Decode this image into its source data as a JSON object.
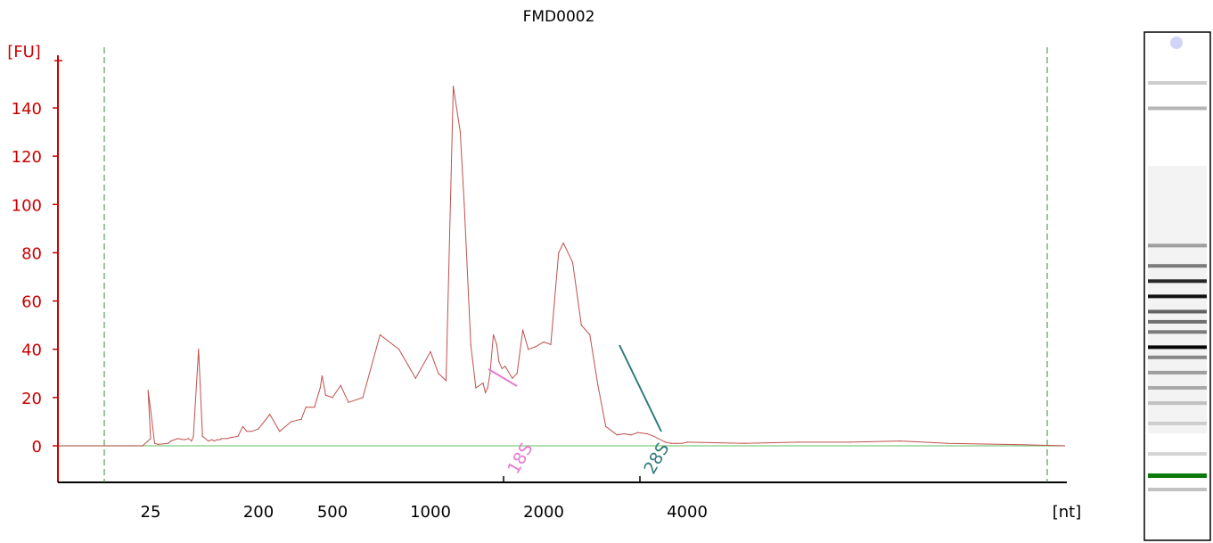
{
  "chart_data": {
    "type": "line",
    "title": "FMD0002",
    "ylabel": "[FU]",
    "xlabel": "[nt]",
    "ylim": [
      -15,
      165
    ],
    "yticks": [
      0,
      20,
      40,
      60,
      80,
      100,
      120,
      140
    ],
    "xtick_labels": [
      "25",
      "200",
      "500",
      "1000",
      "2000",
      "4000"
    ],
    "grid": false,
    "series": [
      {
        "x": [
          22,
          25,
          24,
          25,
          27,
          29,
          35,
          37,
          42,
          48,
          52,
          55,
          57,
          63,
          68,
          76,
          82,
          85,
          90,
          95,
          98,
          110,
          118,
          121,
          135,
          148,
          160,
          175,
          200,
          230,
          260,
          300,
          340,
          360,
          380,
          400,
          430,
          440,
          460,
          500,
          530,
          560,
          620,
          700,
          800,
          900,
          1000,
          1050,
          1100,
          1150,
          1200,
          1230,
          1280,
          1320,
          1380,
          1400,
          1420,
          1440,
          1470,
          1500,
          1520,
          1550,
          1580,
          1650,
          1700,
          1760,
          1820,
          1900,
          2000,
          2070,
          2150,
          2200,
          2300,
          2400,
          2500,
          2600,
          2700,
          2850,
          2950,
          3050,
          3150,
          3300,
          3400,
          3600,
          3700,
          3800,
          3900,
          4000,
          4200,
          4400,
          4600,
          4800,
          5000,
          5300
        ],
        "y": [
          0,
          3,
          23,
          15,
          1,
          0.6,
          1,
          2,
          3,
          2.5,
          3,
          2,
          4,
          40,
          4,
          2,
          2.5,
          2,
          2.5,
          2.5,
          3,
          3,
          3.5,
          3.5,
          4,
          8,
          6,
          6,
          7,
          13,
          6,
          10,
          11,
          16,
          16,
          16,
          24,
          29,
          21,
          20,
          25,
          18,
          20,
          46,
          40,
          28,
          39,
          30,
          27,
          149,
          130,
          100,
          42,
          24,
          26,
          22,
          24,
          30,
          46,
          42,
          35,
          32,
          33,
          28,
          30,
          48,
          40,
          41,
          43,
          42,
          80,
          84,
          76,
          50,
          46,
          25,
          8,
          4.5,
          5,
          4.5,
          5.5,
          5,
          4,
          1.5,
          1,
          1,
          1,
          1.5,
          1,
          1.5,
          1.5,
          2,
          1,
          0.5
        ]
      }
    ],
    "markers": [
      {
        "label": "18S",
        "color": "#e87ad0"
      },
      {
        "label": "28S",
        "color": "#2f7a7a"
      }
    ],
    "gel_image": {
      "bands": [
        {
          "position": 0.1,
          "intensity": 0.15
        },
        {
          "position": 0.15,
          "intensity": 0.25
        },
        {
          "position": 0.42,
          "intensity": 0.35
        },
        {
          "position": 0.46,
          "intensity": 0.5
        },
        {
          "position": 0.49,
          "intensity": 0.85
        },
        {
          "position": 0.52,
          "intensity": 0.95
        },
        {
          "position": 0.55,
          "intensity": 0.6
        },
        {
          "position": 0.57,
          "intensity": 0.55
        },
        {
          "position": 0.59,
          "intensity": 0.5
        },
        {
          "position": 0.62,
          "intensity": 1.0
        },
        {
          "position": 0.64,
          "intensity": 0.45
        },
        {
          "position": 0.67,
          "intensity": 0.35
        },
        {
          "position": 0.7,
          "intensity": 0.3
        },
        {
          "position": 0.73,
          "intensity": 0.2
        },
        {
          "position": 0.77,
          "intensity": 0.15
        },
        {
          "position": 0.83,
          "intensity": 0.12
        },
        {
          "position": 0.9,
          "intensity": 0.2
        }
      ],
      "marker_color": "#0a7a0a"
    },
    "colors": {
      "axis": "#cc0000",
      "trace": "#c0504d",
      "baseline": "#7fc97f",
      "window_lines": "#3a8a3a"
    }
  }
}
